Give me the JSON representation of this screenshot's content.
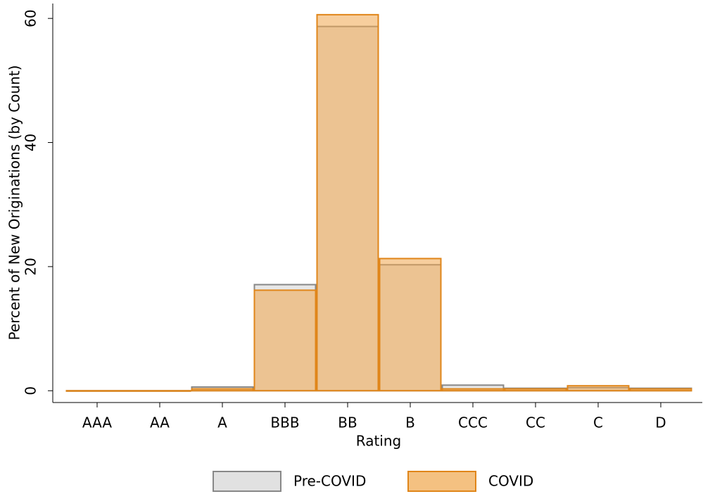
{
  "chart_data": {
    "type": "bar",
    "mode": "overlay",
    "x_label": "Rating",
    "y_label": "Percent of New Originations (by Count)",
    "categories": [
      "AAA",
      "AA",
      "A",
      "BBB",
      "BB",
      "B",
      "CCC",
      "CC",
      "C",
      "D"
    ],
    "series": [
      {
        "name": "Pre-COVID",
        "color": "#d4d4d4",
        "edge": "#888888",
        "values": [
          0,
          0,
          0.6,
          17.1,
          58.7,
          20.3,
          0.9,
          0.4,
          0.5,
          0.4
        ]
      },
      {
        "name": "COVID",
        "color": "#f0a64c",
        "edge": "#e0861a",
        "values": [
          0,
          0,
          0.3,
          16.2,
          60.6,
          21.3,
          0.3,
          0.3,
          0.8,
          0.3
        ]
      }
    ],
    "ylim": [
      -1.9,
      62.4
    ],
    "yticks": [
      0,
      20,
      40,
      60
    ],
    "grid": false,
    "legend": "bottom"
  }
}
